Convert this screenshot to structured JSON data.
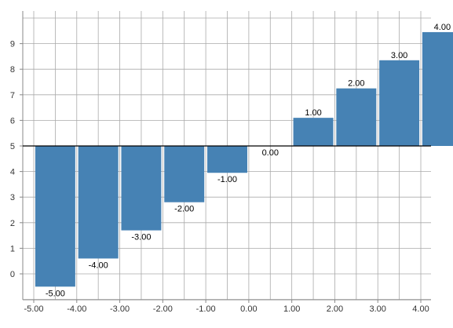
{
  "chart_data": {
    "type": "bar",
    "title": "",
    "xlabel": "",
    "ylabel": "",
    "x": [
      -4.5,
      -3.5,
      -2.5,
      -1.5,
      -0.5,
      0.5,
      1.5,
      2.5,
      3.5
    ],
    "values": [
      -5,
      -4,
      -3,
      -2,
      -1,
      0,
      1,
      2,
      3
    ],
    "data_labels": [
      "-5.00",
      "-4.00",
      "-3.00",
      "-2.00",
      "-1.00",
      "0.00",
      "1.00",
      "2.00",
      "3.00"
    ],
    "extra_label": "4.00",
    "bar_value_offset": 5,
    "bar_heights_absolute": [
      -0.5,
      0.6,
      1.7,
      2.8,
      3.95,
      5,
      6.1,
      7.25,
      8.35,
      9.45
    ],
    "x_ticks": [
      "-5.00",
      "-4.00",
      "-3.00",
      "-2.00",
      "-1.00",
      "0.00",
      "1.00",
      "2.00",
      "3.00",
      "4.00"
    ],
    "y_ticks": [
      "0",
      "1",
      "2",
      "3",
      "4",
      "5",
      "6",
      "7",
      "8",
      "9"
    ],
    "xlim": [
      -5.2,
      4.2
    ],
    "ylim": [
      -1,
      10
    ],
    "baseline": 5,
    "grid": true,
    "legend": "none",
    "bar_color": "#4682b4"
  }
}
